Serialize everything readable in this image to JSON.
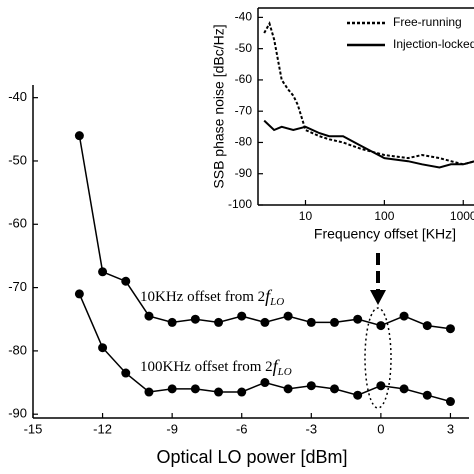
{
  "chart_data": [
    {
      "type": "line",
      "xlabel": "Optical LO power [dBm]",
      "xlim": [
        -15,
        3.8
      ],
      "xticks": [
        -15,
        -12,
        -9,
        -6,
        -3,
        0,
        3
      ],
      "ylim": [
        -90.6,
        -38
      ],
      "yticks": [
        -40,
        -50,
        -60,
        -70,
        -80,
        -90
      ],
      "x": [
        -13,
        -12,
        -11,
        -10,
        -9,
        -8,
        -7,
        -6,
        -5,
        -4,
        -3,
        -2,
        -1,
        0,
        1,
        2,
        3
      ],
      "series": [
        {
          "name": "10KHz offset",
          "color": "#000000",
          "values": [
            -46,
            -67.5,
            -69,
            -74.5,
            -75.5,
            -75,
            -75.5,
            -74.5,
            -75.5,
            -74.5,
            -75.5,
            -75.5,
            -75,
            -76,
            -74.5,
            -76,
            -76.5
          ]
        },
        {
          "name": "100KHz offset",
          "color": "#000000",
          "values": [
            -71,
            -79.5,
            -83.5,
            -86.5,
            -86,
            -86,
            -86.5,
            -86.5,
            -85,
            -86,
            -85.5,
            -86,
            -87,
            -85.5,
            -86,
            -87,
            -88
          ]
        }
      ],
      "annotations": [
        {
          "text": "10KHz offset from 2",
          "italic": "f",
          "sub": "LO"
        },
        {
          "text": "100KHz offset from 2",
          "italic": "f",
          "sub": "LO"
        }
      ]
    },
    {
      "type": "line",
      "xlabel": "Frequency offset [KHz]",
      "ylabel": "SSB phase noise [dBc/Hz]",
      "xscale": "log",
      "xlim": [
        2.5,
        2000
      ],
      "xticks": [
        10,
        100,
        1000
      ],
      "ylim": [
        -100,
        -37
      ],
      "yticks": [
        -40,
        -50,
        -60,
        -70,
        -80,
        -90,
        -100
      ],
      "legend": "upper right",
      "series": [
        {
          "name": "Free-running",
          "color": "#000000",
          "dash": "dotted",
          "x": [
            3,
            3.5,
            4,
            5,
            6,
            7,
            8,
            10,
            15,
            20,
            30,
            50,
            100,
            200,
            300,
            500,
            700,
            1000,
            1400
          ],
          "values": [
            -45,
            -42,
            -47,
            -60,
            -63,
            -65,
            -68,
            -76,
            -78,
            -79,
            -80,
            -82,
            -84,
            -85,
            -84,
            -85,
            -86,
            -87,
            -86
          ]
        },
        {
          "name": "Injection-locked",
          "color": "#000000",
          "dash": "solid",
          "x": [
            3,
            4,
            5,
            7,
            10,
            15,
            20,
            30,
            50,
            100,
            200,
            300,
            500,
            700,
            1000,
            1400
          ],
          "values": [
            -73,
            -76,
            -75,
            -76,
            -75,
            -77,
            -78,
            -78,
            -81,
            -85,
            -86,
            -87,
            -88,
            -87,
            -87,
            -86
          ]
        }
      ]
    }
  ]
}
